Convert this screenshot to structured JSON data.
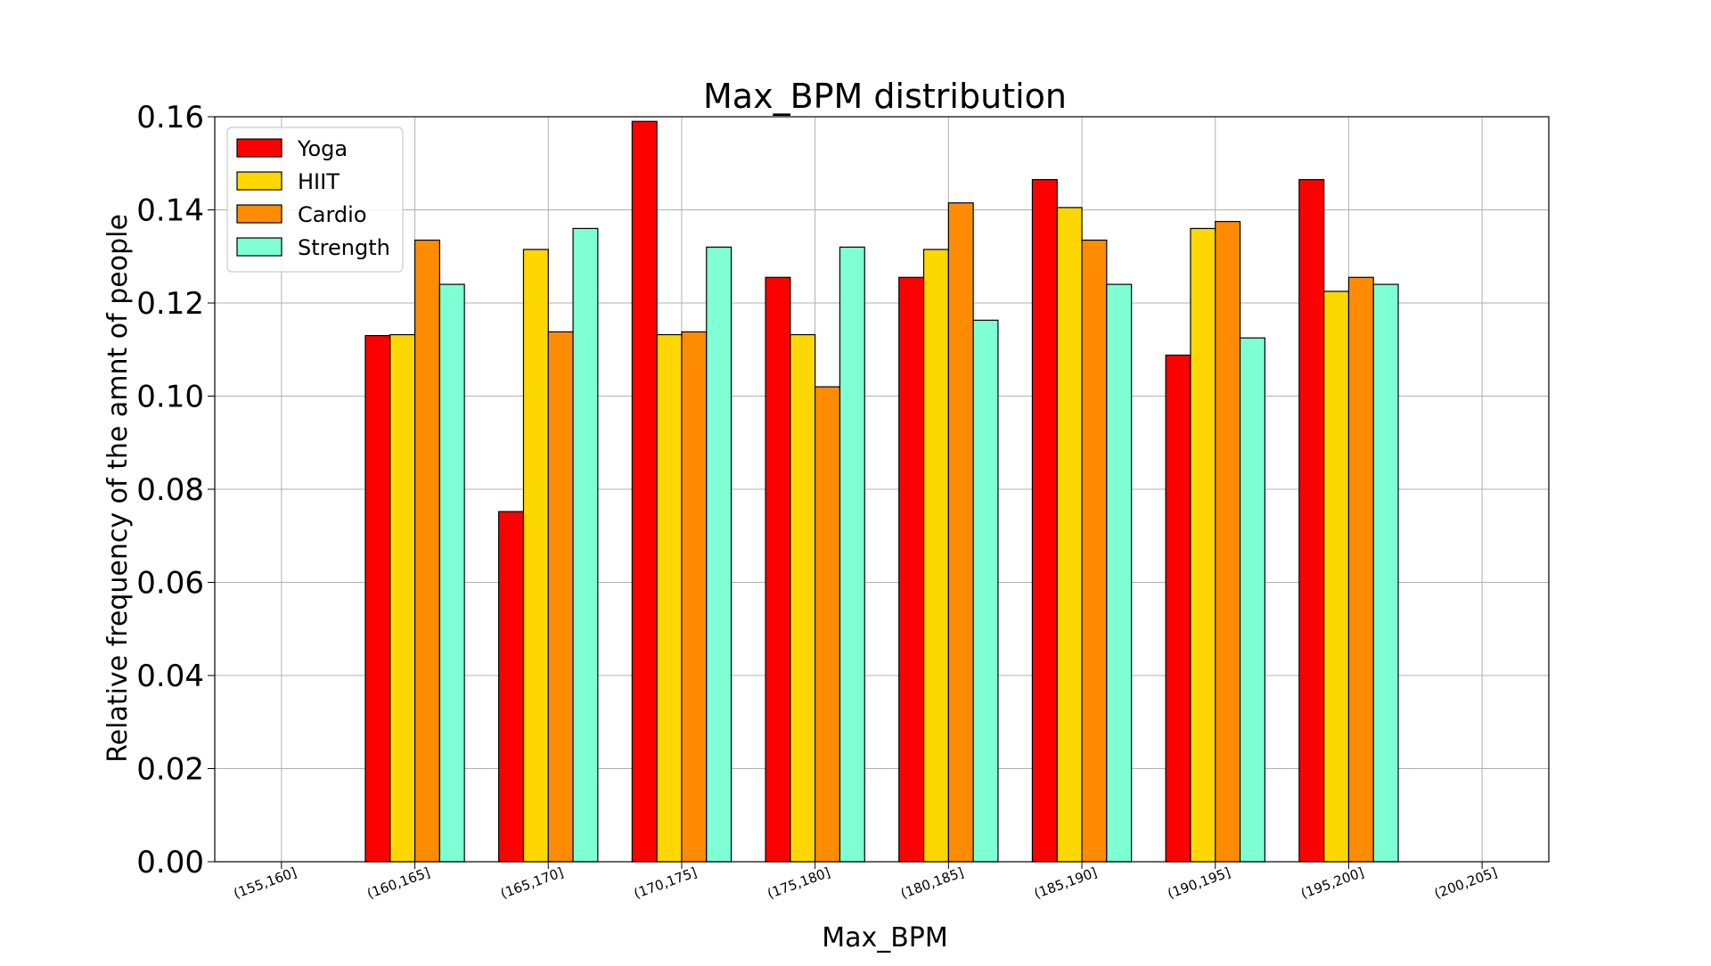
{
  "chart_data": {
    "type": "bar",
    "title": "Max_BPM distribution",
    "xlabel": "Max_BPM",
    "ylabel": "Relative frequency of the amnt of people",
    "ylim": [
      0,
      0.16
    ],
    "yticks": [
      "0.00",
      "0.02",
      "0.04",
      "0.06",
      "0.08",
      "0.10",
      "0.12",
      "0.14",
      "0.16"
    ],
    "ytick_values": [
      0,
      0.02,
      0.04,
      0.06,
      0.08,
      0.1,
      0.12,
      0.14,
      0.16
    ],
    "categories": [
      "(155,160]",
      "(160,165]",
      "(165,170]",
      "(170,175]",
      "(175,180]",
      "(180,185]",
      "(185,190]",
      "(190,195]",
      "(195,200]",
      "(200,205]"
    ],
    "grid": true,
    "legend_position": "top-left",
    "series": [
      {
        "name": "Yoga",
        "color": "#ff0000",
        "values": [
          0,
          0.113,
          0.0752,
          0.159,
          0.1255,
          0.1255,
          0.1465,
          0.1088,
          0.1465,
          0
        ]
      },
      {
        "name": "HIIT",
        "color": "#ffd700",
        "values": [
          0,
          0.1132,
          0.1315,
          0.1132,
          0.1132,
          0.1315,
          0.1405,
          0.136,
          0.1225,
          0
        ]
      },
      {
        "name": "Cardio",
        "color": "#ff8c00",
        "values": [
          0,
          0.1335,
          0.1138,
          0.1138,
          0.102,
          0.1415,
          0.1335,
          0.1375,
          0.1255,
          0
        ]
      },
      {
        "name": "Strength",
        "color": "#7fffd4",
        "values": [
          0,
          0.124,
          0.136,
          0.132,
          0.132,
          0.1163,
          0.124,
          0.1125,
          0.124,
          0
        ]
      }
    ]
  }
}
